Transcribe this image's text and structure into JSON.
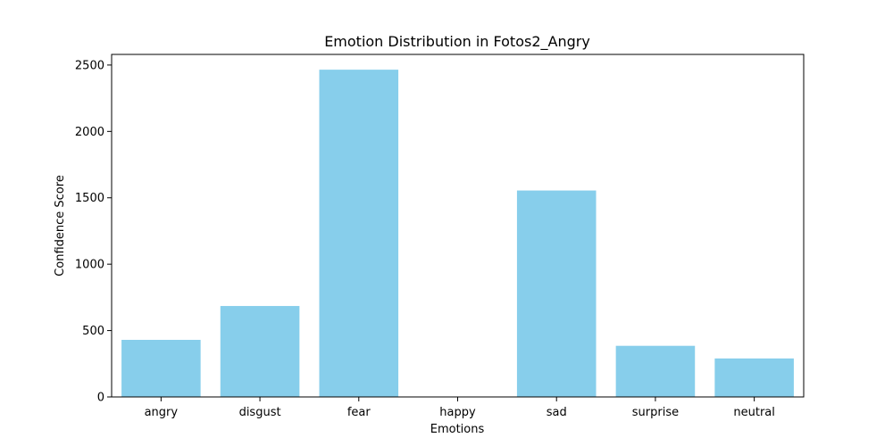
{
  "chart_data": {
    "type": "bar",
    "title": "Emotion Distribution in Fotos2_Angry",
    "xlabel": "Emotions",
    "ylabel": "Confidence Score",
    "categories": [
      "angry",
      "disgust",
      "fear",
      "happy",
      "sad",
      "surprise",
      "neutral"
    ],
    "values": [
      430,
      685,
      2465,
      0,
      1555,
      385,
      290
    ],
    "ylim": [
      0,
      2580
    ],
    "yticks": [
      0,
      500,
      1000,
      1500,
      2000,
      2500
    ],
    "grid": false,
    "legend": "none",
    "bar_color": "#87CEEB"
  }
}
